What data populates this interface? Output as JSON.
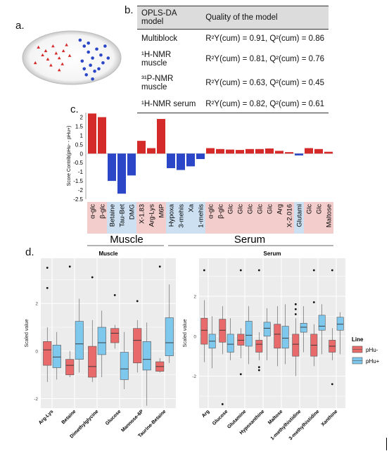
{
  "labels": {
    "a": "a.",
    "b": "b.",
    "c": "c.",
    "d": "d."
  },
  "table": {
    "headers": [
      "OPLS-DA model",
      "Quality of the model"
    ],
    "rows": [
      {
        "model": "Multiblock",
        "quality": "R²Y(cum) = 0.91, Q²(cum) = 0.86"
      },
      {
        "model": "¹H-NMR muscle",
        "quality": "R²Y(cum) = 0.81, Q²(cum) = 0.76"
      },
      {
        "model": "³¹P-NMR muscle",
        "quality": "R²Y(cum) = 0.63, Q²(cum) = 0.45"
      },
      {
        "model": "¹H-NMR serum",
        "quality": "R²Y(cum) = 0.82, Q²(cum) = 0.61"
      }
    ]
  },
  "colors": {
    "red": "#d42a2a",
    "blue": "#2b47c8",
    "box_red": "#e86a6a",
    "box_blue": "#7ec8ee",
    "pink_bg": "#f3cccc",
    "lightblue_bg": "#cce0f2"
  },
  "scores_plot": {
    "red_points": [
      [
        0.18,
        0.32
      ],
      [
        0.22,
        0.45
      ],
      [
        0.27,
        0.52
      ],
      [
        0.25,
        0.38
      ],
      [
        0.32,
        0.3
      ],
      [
        0.35,
        0.42
      ],
      [
        0.38,
        0.5
      ],
      [
        0.42,
        0.38
      ],
      [
        0.45,
        0.28
      ],
      [
        0.3,
        0.62
      ],
      [
        0.38,
        0.7
      ],
      [
        0.15,
        0.58
      ],
      [
        0.41,
        0.6
      ],
      [
        0.48,
        0.46
      ]
    ],
    "blue_points": [
      [
        0.58,
        0.2
      ],
      [
        0.62,
        0.3
      ],
      [
        0.66,
        0.4
      ],
      [
        0.7,
        0.5
      ],
      [
        0.6,
        0.55
      ],
      [
        0.68,
        0.62
      ],
      [
        0.72,
        0.72
      ],
      [
        0.64,
        0.78
      ],
      [
        0.74,
        0.35
      ],
      [
        0.78,
        0.45
      ],
      [
        0.8,
        0.58
      ],
      [
        0.76,
        0.68
      ],
      [
        0.82,
        0.3
      ],
      [
        0.7,
        0.85
      ],
      [
        0.62,
        0.68
      ],
      [
        0.85,
        0.5
      ],
      [
        0.66,
        0.25
      ]
    ]
  },
  "chart_data": [
    {
      "type": "bar",
      "ylabel": "Score Contrib(pHu- - pHu+)",
      "ylim": [
        -2.5,
        2.25
      ],
      "yticks": [
        "2",
        "1.5",
        "1",
        "0.5",
        "0",
        "-0.5",
        "-1",
        "-1.5",
        "-2",
        "-2.5"
      ],
      "categories": [
        "α-glc",
        "β-glc",
        "Betaine",
        "Tau-Bet",
        "DMG",
        "X-1.83",
        "Arg-Lys",
        "M6P",
        "Hypoxa",
        "3-mehis",
        "Xa",
        "1-mehis",
        "α-glc",
        "β-glc",
        "Glc",
        "Glc",
        "Glc",
        "Glc",
        "Glc",
        "Arg",
        "X-2.016",
        "Glutami",
        "Glc",
        "Glc",
        "Maltose"
      ],
      "values": [
        2.2,
        2.0,
        -1.5,
        -2.2,
        -1.2,
        0.7,
        0.3,
        1.9,
        -0.8,
        -0.9,
        -0.7,
        -0.3,
        0.3,
        0.25,
        0.22,
        0.2,
        0.25,
        0.25,
        0.28,
        0.15,
        0.08,
        -0.1,
        0.3,
        0.25,
        0.1
      ],
      "bar_colors": [
        "red",
        "red",
        "blue",
        "blue",
        "blue",
        "red",
        "red",
        "red",
        "blue",
        "blue",
        "blue",
        "blue",
        "red",
        "red",
        "red",
        "red",
        "red",
        "red",
        "red",
        "red",
        "red",
        "blue",
        "red",
        "red",
        "red"
      ],
      "groups": [
        "Muscle",
        "Serum"
      ]
    },
    {
      "type": "box",
      "title": "Muscle",
      "ylabel": "Scaled value",
      "yticks": [
        "2",
        "0",
        "-2"
      ],
      "ylim": [
        -2.4,
        3.9
      ],
      "categories": [
        "Arg-Lys",
        "Betaine",
        "Dimethylglycine",
        "Glucose",
        "Mannose-6P",
        "Taurine-Betaine"
      ],
      "series": [
        {
          "name": "pHu-",
          "boxes": [
            [
              -1.3,
              -0.6,
              0.05,
              0.4,
              1.0
            ],
            [
              -1.1,
              -1.0,
              -0.6,
              -0.35,
              0
            ],
            [
              -1.3,
              -1.1,
              -0.65,
              0.2,
              1.3
            ],
            [
              0.1,
              0.35,
              0.75,
              0.95,
              1.1
            ],
            [
              -0.9,
              -0.5,
              0.45,
              0.95,
              1.3
            ],
            [
              -0.9,
              -0.85,
              -0.65,
              -0.45,
              -0.3
            ]
          ]
        },
        {
          "name": "pHu+",
          "boxes": [
            [
              -1.2,
              -0.7,
              -0.25,
              0.25,
              0.8
            ],
            [
              -0.9,
              -0.35,
              0.3,
              1.25,
              2.2
            ],
            [
              -1.1,
              -0.15,
              0.35,
              1.0,
              1.7
            ],
            [
              -1.6,
              -1.2,
              -0.75,
              -0.05,
              0.8
            ],
            [
              -2.3,
              -0.8,
              -0.35,
              0.4,
              1.2
            ],
            [
              -0.5,
              -0.2,
              0.35,
              1.4,
              2.8
            ]
          ]
        }
      ],
      "outliers": [
        [
          0,
          3.5
        ],
        [
          0,
          2.65
        ],
        [
          1,
          3.55
        ],
        [
          2,
          3.1
        ],
        [
          3,
          2.35
        ],
        [
          4,
          2.1
        ],
        [
          5,
          3.55
        ]
      ]
    },
    {
      "type": "box",
      "title": "Serum",
      "ylabel": "Scaled value",
      "yticks": [
        "2",
        "0",
        "-2"
      ],
      "ylim": [
        -3.6,
        3.9
      ],
      "categories": [
        "Arg",
        "Glucose",
        "Glutamine",
        "Hypoxanthine",
        "Maltose",
        "1-methylhistidine",
        "3-methylhistidine",
        "Xanthine"
      ],
      "series": [
        {
          "name": "pHu-",
          "boxes": [
            [
              -1.3,
              -0.4,
              0.3,
              0.9,
              1.8
            ],
            [
              -0.9,
              -0.3,
              0.3,
              0.85,
              1.5
            ],
            [
              -1.1,
              -0.45,
              -0.2,
              0.1,
              0.4
            ],
            [
              -1.2,
              -0.8,
              -0.4,
              -0.2,
              0.2
            ],
            [
              -1.5,
              -0.6,
              0.1,
              0.6,
              1.5
            ],
            [
              -2.0,
              -1.0,
              -0.4,
              0.1,
              0.9
            ],
            [
              -1.5,
              -1.0,
              -0.45,
              0.1,
              0.6
            ],
            [
              -1.2,
              -0.8,
              -0.5,
              -0.2,
              0.4
            ]
          ]
        },
        {
          "name": "pHu+",
          "boxes": [
            [
              -1.6,
              -0.6,
              -0.25,
              0.1,
              1.0
            ],
            [
              -1.2,
              -0.8,
              -0.4,
              0.1,
              0.9
            ],
            [
              -1.4,
              -0.5,
              0.05,
              0.75,
              1.5
            ],
            [
              -1.2,
              0.0,
              0.4,
              0.7,
              1.4
            ],
            [
              -1.4,
              -0.6,
              -0.1,
              0.5,
              1.6
            ],
            [
              -0.8,
              0.2,
              0.45,
              0.65,
              1.5
            ],
            [
              -0.9,
              0.3,
              0.5,
              1.05,
              1.6
            ],
            [
              -0.9,
              0.3,
              0.6,
              0.95,
              1.2
            ]
          ]
        }
      ],
      "outliers": [
        [
          0,
          3.3
        ],
        [
          1,
          -3.4
        ],
        [
          2,
          -1.9
        ],
        [
          2,
          3.3
        ],
        [
          3,
          -1.7
        ],
        [
          3,
          -1.55
        ],
        [
          3,
          3.3
        ],
        [
          5,
          1.6
        ],
        [
          5,
          1.35
        ],
        [
          5,
          1.1
        ],
        [
          6,
          1.7
        ],
        [
          6,
          3.3
        ],
        [
          7,
          -2.4
        ],
        [
          7,
          3.3
        ]
      ]
    }
  ],
  "legend": {
    "title": "Line",
    "items": [
      "pHu-",
      "pHu+"
    ]
  }
}
